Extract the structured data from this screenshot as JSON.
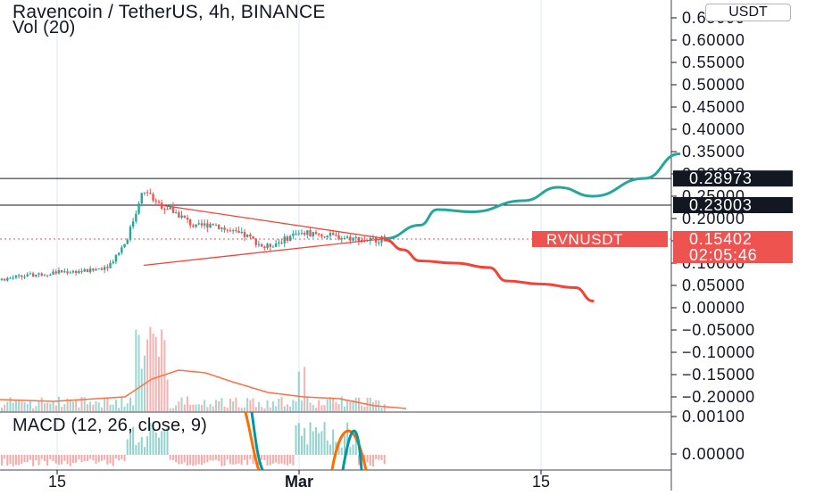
{
  "header": {
    "title": "Ravencoin / TetherUS, 4h, BINANCE",
    "volume_label": "Vol (20)",
    "macd_label": "MACD (12, 26, close, 9)",
    "currency_button": "USDT"
  },
  "price_axis": {
    "ticks": [
      "0.65000",
      "0.60000",
      "0.55000",
      "0.50000",
      "0.45000",
      "0.40000",
      "0.35000",
      "0.30000",
      "0.25000",
      "0.20000",
      "0.15000",
      "0.10000",
      "0.05000",
      "0.00000",
      "−0.05000",
      "−0.10000",
      "−0.15000",
      "−0.20000"
    ]
  },
  "macd_axis": {
    "ticks": [
      "0.00100",
      "0.00000"
    ]
  },
  "time_axis": {
    "ticks": [
      "15",
      "Mar",
      "15"
    ]
  },
  "horizontal_levels": [
    {
      "value": 0.28973,
      "label": "0.28973"
    },
    {
      "value": 0.23003,
      "label": "0.23003"
    }
  ],
  "current_price": {
    "symbol": "RVNUSDT",
    "price_label": "0.15402",
    "countdown": "02:05:46"
  },
  "colors": {
    "up": "#26a69a",
    "down": "#ef5350",
    "bullish_projection": "#26a69a",
    "bearish_projection": "#f44336",
    "triangle": "#f44336",
    "volume_ma": "#ff7043",
    "macd_line": "#0097a7",
    "signal_line": "#ff6d00",
    "price_line": "#ef5350",
    "grid": "#e6f0f7",
    "axis_text": "#131722"
  },
  "chart_data": {
    "type": "candlestick",
    "symbol": "Ravencoin / TetherUS",
    "interval": "4h",
    "exchange": "BINANCE",
    "price_path": [
      [
        "Feb 07",
        0.045
      ],
      [
        "Feb 10",
        0.052
      ],
      [
        "Feb 12",
        0.065
      ],
      [
        "Feb 15",
        0.08
      ],
      [
        "Feb 17",
        0.083
      ],
      [
        "Feb 18",
        0.095
      ],
      [
        "Feb 19",
        0.15
      ],
      [
        "Feb 20",
        0.265
      ],
      [
        "Feb 21",
        0.23
      ],
      [
        "Feb 22",
        0.21
      ],
      [
        "Feb 23",
        0.18
      ],
      [
        "Feb 24",
        0.19
      ],
      [
        "Feb 25",
        0.17
      ],
      [
        "Feb 26",
        0.16
      ],
      [
        "Feb 27",
        0.135
      ],
      [
        "Feb 28",
        0.15
      ],
      [
        "Mar 01",
        0.17
      ],
      [
        "Mar 02",
        0.165
      ],
      [
        "Mar 03",
        0.16
      ],
      [
        "Mar 05",
        0.152
      ],
      [
        "Mar 06",
        0.154
      ]
    ],
    "triangle": {
      "upper": [
        [
          "Feb 21",
          0.23
        ],
        [
          "Mar 06",
          0.155
        ]
      ],
      "lower": [
        [
          "Feb 20",
          0.095
        ],
        [
          "Mar 06",
          0.155
        ]
      ]
    },
    "bullish_projection": [
      [
        "Mar 06",
        0.155
      ],
      [
        "Mar 08",
        0.185
      ],
      [
        "Mar 09",
        0.22
      ],
      [
        "Mar 11",
        0.215
      ],
      [
        "Mar 14",
        0.24
      ],
      [
        "Mar 16",
        0.27
      ],
      [
        "Mar 18",
        0.25
      ],
      [
        "Mar 21",
        0.29
      ],
      [
        "Mar 23",
        0.345
      ]
    ],
    "bearish_projection": [
      [
        "Mar 06",
        0.152
      ],
      [
        "Mar 07",
        0.13
      ],
      [
        "Mar 08",
        0.105
      ],
      [
        "Mar 10",
        0.1
      ],
      [
        "Mar 12",
        0.09
      ],
      [
        "Mar 13",
        0.06
      ],
      [
        "Mar 15",
        0.053
      ],
      [
        "Mar 17",
        0.045
      ],
      [
        "Mar 18",
        0.015
      ]
    ],
    "volume": {
      "label": "Vol (20)",
      "range": [
        -0.22,
        -0.05
      ],
      "peaks": [
        [
          "Feb 13",
          -0.13
        ],
        [
          "Feb 20",
          -0.075
        ],
        [
          "Feb 21",
          -0.05
        ],
        [
          "Mar 01",
          -0.1
        ]
      ]
    },
    "macd": {
      "label": "MACD (12, 26, close, 9)",
      "ticks": [
        "0.00100",
        "0.00000"
      ]
    },
    "ylim": [
      -0.22,
      0.66
    ],
    "xlim": [
      "Feb 07",
      "Mar 23"
    ],
    "grid": true
  }
}
